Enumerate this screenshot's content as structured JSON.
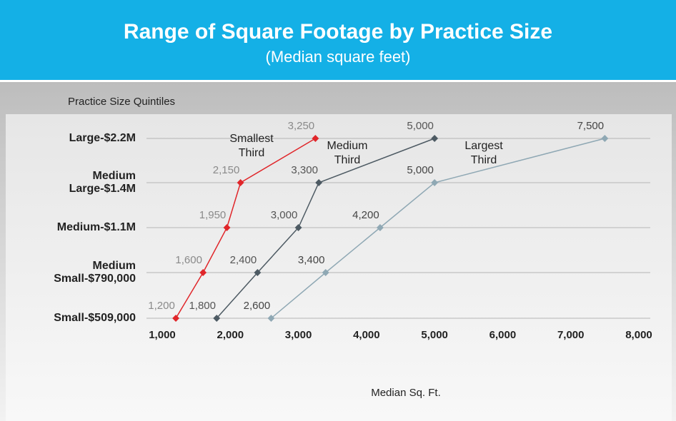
{
  "chart_data": {
    "type": "line",
    "title": "Range of Square Footage by Practice Size",
    "subtitle": "(Median square feet)",
    "y_axis_label": "Practice Size Quintiles",
    "x_axis_label": "Median Sq. Ft.",
    "categories": [
      [
        "Large-$2.2M"
      ],
      [
        "Medium",
        "Large-$1.4M"
      ],
      [
        "Medium-$1.1M"
      ],
      [
        "Medium",
        "Small-$790,000"
      ],
      [
        "Small-$509,000"
      ]
    ],
    "xlim": [
      1000,
      8000
    ],
    "xticks": [
      {
        "value": 1000,
        "label": "1,000"
      },
      {
        "value": 2000,
        "label": "2,000"
      },
      {
        "value": 3000,
        "label": "3,000"
      },
      {
        "value": 4000,
        "label": "4,000"
      },
      {
        "value": 5000,
        "label": "5,000"
      },
      {
        "value": 6000,
        "label": "6,000"
      },
      {
        "value": 7000,
        "label": "7,000"
      },
      {
        "value": 8000,
        "label": "8,000"
      }
    ],
    "grid": true,
    "series": [
      {
        "name": [
          "Smallest",
          "Third"
        ],
        "color": "#e0262a",
        "label_color": "#8a8a8a",
        "values": [
          3250,
          2150,
          1950,
          1600,
          1200
        ],
        "value_labels": [
          "3,250",
          "2,150",
          "1,950",
          "1,600",
          "1,200"
        ]
      },
      {
        "name": [
          "Medium",
          "Third"
        ],
        "color": "#4d5a63",
        "label_color": "#555555",
        "values": [
          5000,
          3300,
          3000,
          2400,
          1800
        ],
        "value_labels": [
          "5,000",
          "3,300",
          "3,000",
          "2,400",
          "1,800"
        ]
      },
      {
        "name": [
          "Largest",
          "Third"
        ],
        "color": "#8fa8b4",
        "label_color": "#444444",
        "values": [
          7500,
          5000,
          4200,
          3400,
          2600
        ],
        "value_labels": [
          "7,500",
          "5,000",
          "4,200",
          "3,400",
          "2,600"
        ]
      }
    ]
  }
}
